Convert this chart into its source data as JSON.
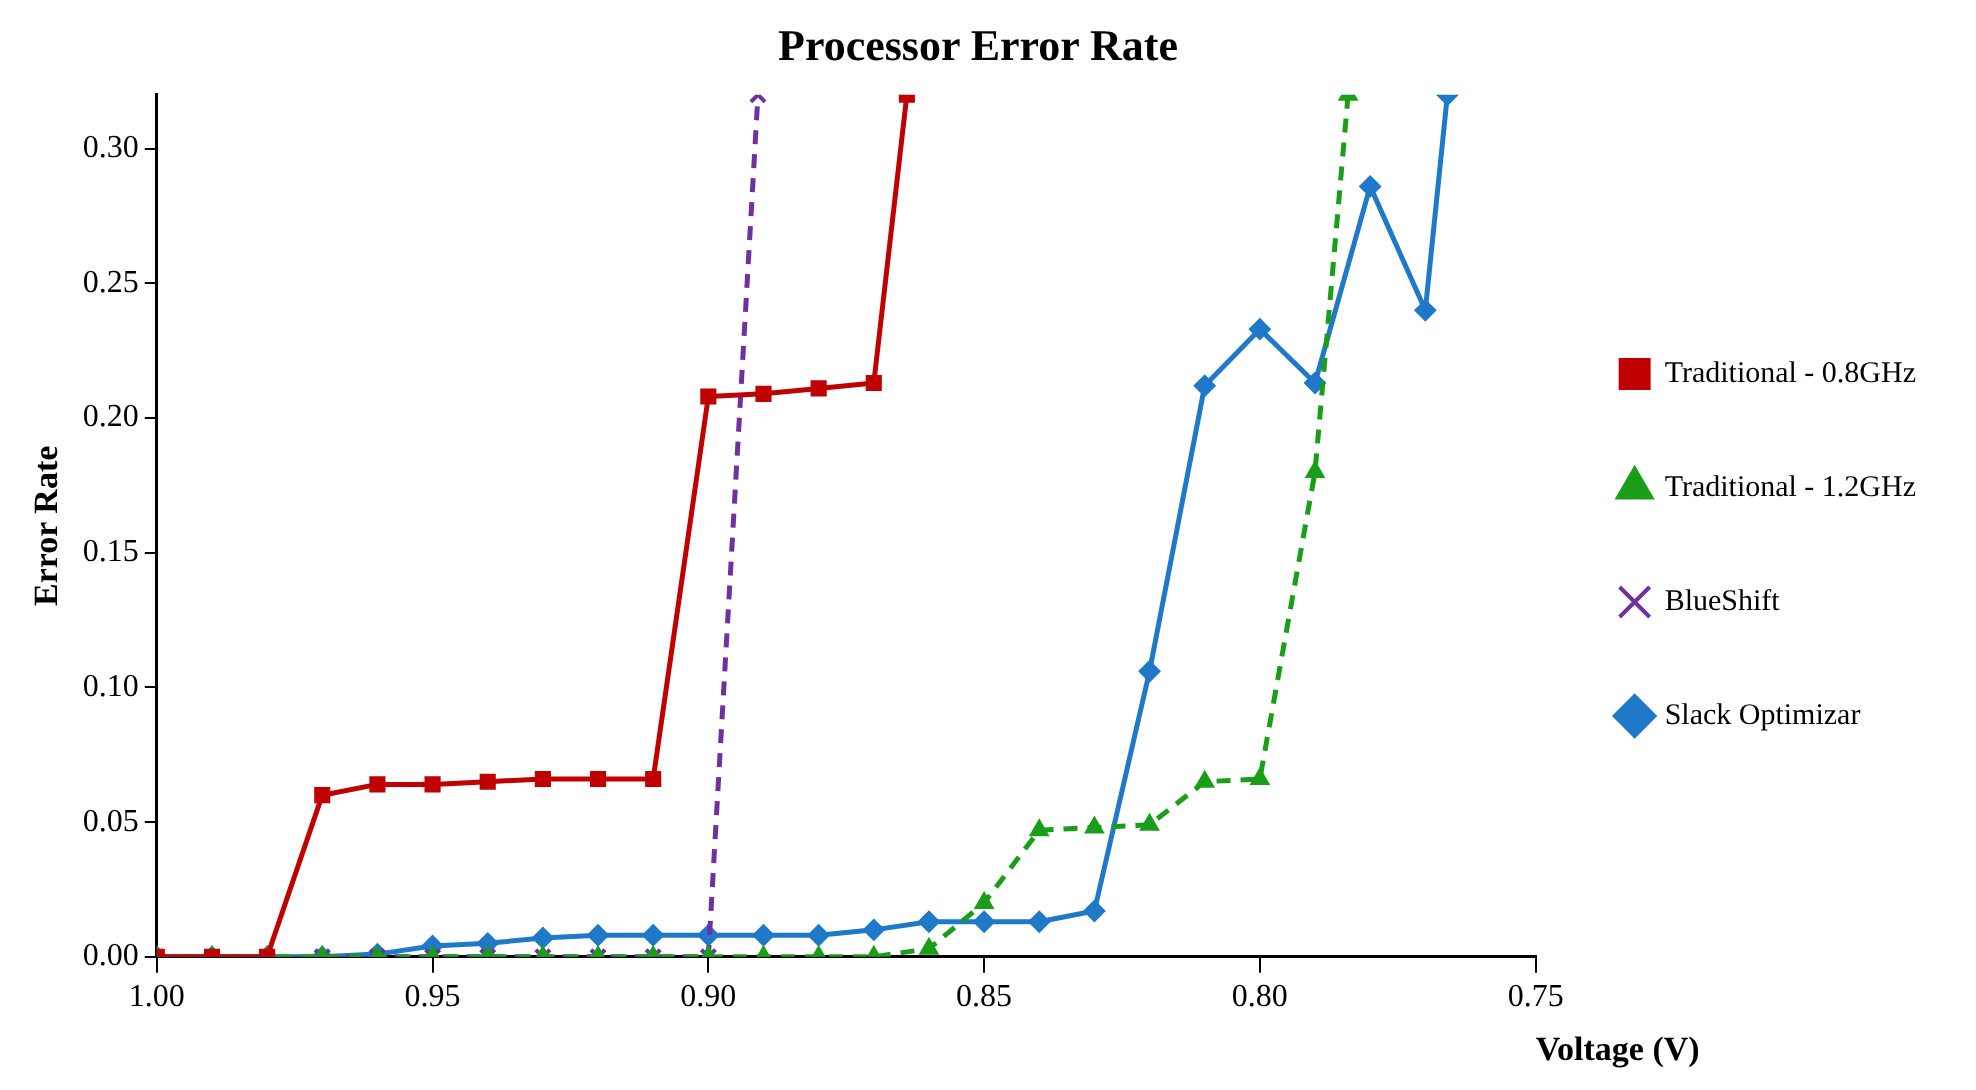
{
  "chart_data": {
    "type": "line",
    "title": "Processor Error Rate",
    "xlabel": "Voltage (V)",
    "ylabel": "Error Rate",
    "xlim": [
      1.0,
      0.75
    ],
    "xticks": [
      {
        "value": 1.0,
        "label": "1.00"
      },
      {
        "value": 0.95,
        "label": "0.95"
      },
      {
        "value": 0.9,
        "label": "0.90"
      },
      {
        "value": 0.85,
        "label": "0.85"
      },
      {
        "value": 0.8,
        "label": "0.80"
      },
      {
        "value": 0.75,
        "label": "0.75"
      }
    ],
    "ylim": [
      0,
      0.32
    ],
    "yticks": [
      {
        "value": 0,
        "label": "0.00"
      },
      {
        "value": 0.05,
        "label": "0.05"
      },
      {
        "value": 0.1,
        "label": "0.10"
      },
      {
        "value": 0.15,
        "label": "0.15"
      },
      {
        "value": 0.2,
        "label": "0.20"
      },
      {
        "value": 0.25,
        "label": "0.25"
      },
      {
        "value": 0.3,
        "label": "0.30"
      }
    ],
    "grid": false,
    "legend": "right",
    "series": [
      {
        "name": "Traditional - 0.8GHz",
        "color": "#c00000",
        "marker": "square",
        "line_style": "solid",
        "x": [
          1.0,
          0.99,
          0.98,
          0.97,
          0.96,
          0.95,
          0.94,
          0.93,
          0.92,
          0.91,
          0.9,
          0.89,
          0.88,
          0.87,
          0.864
        ],
        "values": [
          0,
          0,
          0,
          0.06,
          0.064,
          0.064,
          0.065,
          0.066,
          0.066,
          0.066,
          0.208,
          0.209,
          0.211,
          0.213,
          0.32
        ]
      },
      {
        "name": "Traditional - 1.2GHz",
        "color": "#1a9e1a",
        "marker": "triangle",
        "line_style": "dashed",
        "x": [
          1.0,
          0.99,
          0.98,
          0.97,
          0.96,
          0.95,
          0.94,
          0.93,
          0.92,
          0.91,
          0.9,
          0.89,
          0.88,
          0.87,
          0.86,
          0.85,
          0.84,
          0.83,
          0.82,
          0.81,
          0.8,
          0.79,
          0.784
        ],
        "values": [
          0,
          0,
          0,
          0,
          0,
          0,
          0,
          0,
          0,
          0,
          0,
          0,
          0,
          0,
          0.003,
          0.02,
          0.047,
          0.048,
          0.049,
          0.065,
          0.066,
          0.18,
          0.32
        ]
      },
      {
        "name": "BlueShift",
        "color": "#7030a0",
        "marker": "cross",
        "line_style": "dashed",
        "x": [
          0.97,
          0.96,
          0.95,
          0.94,
          0.93,
          0.92,
          0.91,
          0.9,
          0.891
        ],
        "values": [
          0,
          0,
          0,
          0,
          0,
          0,
          0,
          0,
          0.32
        ]
      },
      {
        "name": "Slack Optimizar",
        "color": "#1f78c8",
        "marker": "diamond",
        "line_style": "solid",
        "x": [
          1.0,
          0.99,
          0.98,
          0.97,
          0.96,
          0.95,
          0.94,
          0.93,
          0.92,
          0.91,
          0.9,
          0.89,
          0.88,
          0.87,
          0.86,
          0.85,
          0.84,
          0.83,
          0.82,
          0.81,
          0.8,
          0.79,
          0.78,
          0.77,
          0.766
        ],
        "values": [
          0,
          0,
          0,
          0,
          0.001,
          0.004,
          0.005,
          0.007,
          0.008,
          0.008,
          0.008,
          0.008,
          0.008,
          0.01,
          0.013,
          0.013,
          0.013,
          0.017,
          0.106,
          0.212,
          0.233,
          0.213,
          0.286,
          0.24,
          0.32
        ]
      }
    ]
  }
}
